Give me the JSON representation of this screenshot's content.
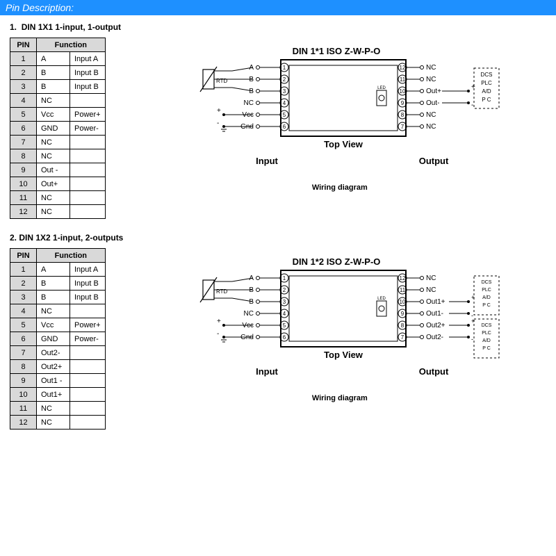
{
  "header": {
    "title": "Pin Description:"
  },
  "colors": {
    "header_bg": "#1e90ff",
    "header_text": "#ffffff",
    "table_header_bg": "#d9d9d9",
    "border": "#000000",
    "bg": "#ffffff",
    "text": "#000000"
  },
  "sections": [
    {
      "number": "1.",
      "title": "DIN 1X1 1-input, 1-output",
      "table": {
        "headers": [
          "PIN",
          "Function"
        ],
        "header_spans": [
          1,
          2
        ],
        "rows": [
          [
            "1",
            "A",
            "Input A"
          ],
          [
            "2",
            "B",
            "Input B"
          ],
          [
            "3",
            "B",
            "Input B"
          ],
          [
            "4",
            "NC",
            ""
          ],
          [
            "5",
            "Vcc",
            "Power+"
          ],
          [
            "6",
            "GND",
            "Power-"
          ],
          [
            "7",
            "NC",
            ""
          ],
          [
            "8",
            "NC",
            ""
          ],
          [
            "9",
            "Out -",
            ""
          ],
          [
            "10",
            "Out+",
            ""
          ],
          [
            "11",
            "NC",
            ""
          ],
          [
            "12",
            "NC",
            ""
          ]
        ]
      },
      "diagram": {
        "title": "DIN 1*1  ISO Z-W-P-O",
        "top_view": "Top View",
        "input_label": "Input",
        "output_label": "Output",
        "left_pins": [
          {
            "n": "1",
            "label": "A"
          },
          {
            "n": "2",
            "label": "B"
          },
          {
            "n": "3",
            "label": "B"
          },
          {
            "n": "4",
            "label": "NC"
          },
          {
            "n": "5",
            "label": "Vcc"
          },
          {
            "n": "6",
            "label": "Gnd"
          }
        ],
        "right_pins": [
          {
            "n": "12",
            "label": "NC"
          },
          {
            "n": "11",
            "label": "NC"
          },
          {
            "n": "10",
            "label": "Out+"
          },
          {
            "n": "9",
            "label": "Out-"
          },
          {
            "n": "8",
            "label": "NC"
          },
          {
            "n": "7",
            "label": "NC"
          }
        ],
        "device_box": {
          "label": "DCS PLC A/D P C"
        },
        "caption": "Wiring diagram"
      }
    },
    {
      "number": "2.",
      "title": "DIN 1X2 1-input, 2-outputs",
      "table": {
        "headers": [
          "PIN",
          "Function"
        ],
        "header_spans": [
          1,
          2
        ],
        "rows": [
          [
            "1",
            "A",
            "Input A"
          ],
          [
            "2",
            "B",
            "Input B"
          ],
          [
            "3",
            "B",
            "Input B"
          ],
          [
            "4",
            "NC",
            ""
          ],
          [
            "5",
            "Vcc",
            "Power+"
          ],
          [
            "6",
            "GND",
            "Power-"
          ],
          [
            "7",
            "Out2-",
            ""
          ],
          [
            "8",
            "Out2+",
            ""
          ],
          [
            "9",
            "Out1 -",
            ""
          ],
          [
            "10",
            "Out1+",
            ""
          ],
          [
            "11",
            "NC",
            ""
          ],
          [
            "12",
            "NC",
            ""
          ]
        ]
      },
      "diagram": {
        "title": "DIN 1*2  ISO Z-W-P-O",
        "top_view": "Top View",
        "input_label": "Input",
        "output_label": "Output",
        "left_pins": [
          {
            "n": "1",
            "label": "A"
          },
          {
            "n": "2",
            "label": "B"
          },
          {
            "n": "3",
            "label": "B"
          },
          {
            "n": "4",
            "label": "NC"
          },
          {
            "n": "5",
            "label": "Vcc"
          },
          {
            "n": "6",
            "label": "Gnd"
          }
        ],
        "right_pins": [
          {
            "n": "12",
            "label": "NC"
          },
          {
            "n": "11",
            "label": "NC"
          },
          {
            "n": "10",
            "label": "Out1+"
          },
          {
            "n": "9",
            "label": "Out1-"
          },
          {
            "n": "8",
            "label": "Out2+"
          },
          {
            "n": "7",
            "label": "Out2-"
          }
        ],
        "device_boxes": [
          {
            "label": "DCS PLC A/D P C"
          },
          {
            "label": "DCS PLC A/D P C"
          }
        ],
        "caption": "Wiring diagram"
      }
    }
  ]
}
